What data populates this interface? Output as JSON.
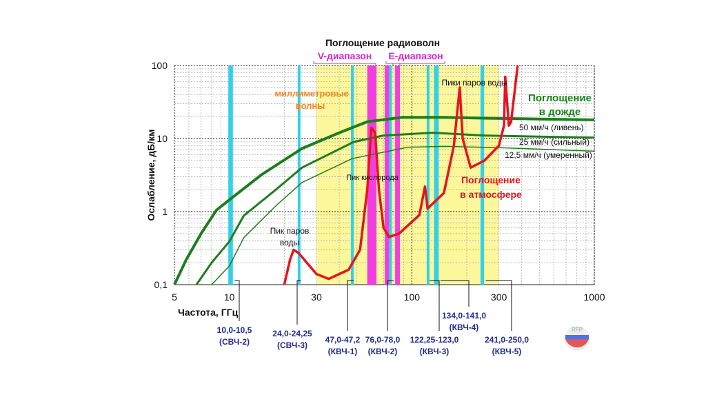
{
  "chart_data": {
    "type": "line",
    "title": "Поглощение радиоволн",
    "xlabel": "Частота, ГГц",
    "ylabel": "Ослабление, дБ/км",
    "x_scale": "log",
    "y_scale": "log",
    "xlim": [
      5,
      1000
    ],
    "ylim": [
      0.1,
      100
    ],
    "x_ticks": [
      {
        "v": 5,
        "label": "5"
      },
      {
        "v": 10,
        "label": "10"
      },
      {
        "v": 30,
        "label": "30"
      },
      {
        "v": 100,
        "label": "100"
      },
      {
        "v": 300,
        "label": "300"
      },
      {
        "v": 1000,
        "label": "1000"
      }
    ],
    "y_ticks": [
      {
        "v": 0.1,
        "label": "0,1"
      },
      {
        "v": 1,
        "label": "1"
      },
      {
        "v": 10,
        "label": "10"
      },
      {
        "v": 100,
        "label": "100"
      }
    ],
    "grid": true,
    "colors": {
      "rain": "#1e7d1e",
      "atmosphere": "#e8141b",
      "band_yellow": "#fbf79a",
      "cyan": "#33d0e8",
      "magenta": "#f23ee0",
      "allocation_label": "#1f2a9a",
      "mm_label": "#f0862a"
    },
    "regions": [
      {
        "label": "миллиметровые волны",
        "from": 30,
        "to": 300,
        "color": "#fbf79a"
      }
    ],
    "bands": [
      {
        "label": "V-диапазон",
        "from": 57,
        "to": 64,
        "color": "#f23ee0"
      },
      {
        "label": "E-диапазон",
        "from": 71,
        "to": 86,
        "parts": [
          [
            71,
            76
          ],
          [
            81,
            86
          ]
        ],
        "color": "#f23ee0"
      }
    ],
    "allocations": [
      {
        "freq": [
          10.0,
          10.5
        ],
        "range": "10,0-10,5",
        "name": "(СВЧ-2)"
      },
      {
        "freq": [
          24.0,
          24.25
        ],
        "range": "24,0-24,25",
        "name": "(СВЧ-3)"
      },
      {
        "freq": [
          47.0,
          47.2
        ],
        "range": "47,0-47,2",
        "name": "(КВЧ-1)"
      },
      {
        "freq": [
          76.0,
          78.0
        ],
        "range": "76,0-78,0",
        "name": "(КВЧ-2)"
      },
      {
        "freq": [
          122.25,
          123.0
        ],
        "range": "122,25-123,0",
        "name": "(КВЧ-3)"
      },
      {
        "freq": [
          134.0,
          141.0
        ],
        "range": "134,0-141,0",
        "name": "(КВЧ-4)"
      },
      {
        "freq": [
          241.0,
          250.0
        ],
        "range": "241,0-250,0",
        "name": "(КВЧ-5)"
      }
    ],
    "series": [
      {
        "name": "50 мм/ч (ливень)",
        "group": "Поглощение в дожде",
        "color": "#1e7d1e",
        "x": [
          5,
          5.8,
          7,
          8.5,
          10,
          15,
          25,
          40,
          57,
          88,
          150,
          250,
          500,
          1000
        ],
        "y": [
          0.1,
          0.22,
          0.5,
          1.05,
          1.45,
          3.2,
          7.3,
          12,
          17,
          19.5,
          19.5,
          19,
          18.5,
          18
        ]
      },
      {
        "name": "25 мм/ч (сильный)",
        "group": "Поглощение в дожде",
        "color": "#1e7d1e",
        "x": [
          6.6,
          8,
          10,
          12,
          18,
          25,
          48,
          70,
          130,
          250,
          500,
          1000
        ],
        "y": [
          0.1,
          0.2,
          0.39,
          0.88,
          2,
          4,
          9,
          11,
          12,
          11,
          10.6,
          10.3
        ]
      },
      {
        "name": "12,5 мм/ч (умеренный)",
        "group": "Поглощение в дожде",
        "color": "#1e7d1e",
        "x": [
          8,
          10,
          12,
          18,
          25,
          47,
          95,
          150,
          300,
          1000
        ],
        "y": [
          0.1,
          0.18,
          0.44,
          1.2,
          2.5,
          5.3,
          7.6,
          7.8,
          7.5,
          6.7
        ]
      },
      {
        "name": "Поглощение в атмосфере",
        "color": "#e8141b",
        "x": [
          20,
          21.5,
          22.5,
          24,
          30,
          35,
          45,
          52,
          57,
          60,
          63,
          66,
          70,
          75,
          85,
          110,
          118,
          122,
          150,
          170,
          183,
          190,
          210,
          250,
          300,
          320,
          325,
          340,
          350,
          380
        ],
        "y": [
          0.1,
          0.22,
          0.3,
          0.27,
          0.14,
          0.12,
          0.16,
          0.3,
          2,
          14,
          12,
          2,
          0.6,
          0.45,
          0.5,
          0.9,
          2.2,
          1.1,
          1.8,
          8,
          50,
          10,
          4,
          5,
          8,
          15,
          70,
          15,
          17,
          100
        ]
      }
    ],
    "annotations": {
      "rain_title_1": "Поглощение",
      "rain_title_2": "в дожде",
      "atm_title_1": "Поглощение",
      "atm_title_2": "в атмосфере",
      "oxygen_peak": "Пик кислорода",
      "water_peak_1": "Пик паров",
      "water_peak_2": "воды",
      "water_peaks": "Пики паров воды",
      "mm_1": "миллиметровые",
      "mm_2": "волны"
    }
  },
  "logo": {
    "text": "RFP"
  }
}
